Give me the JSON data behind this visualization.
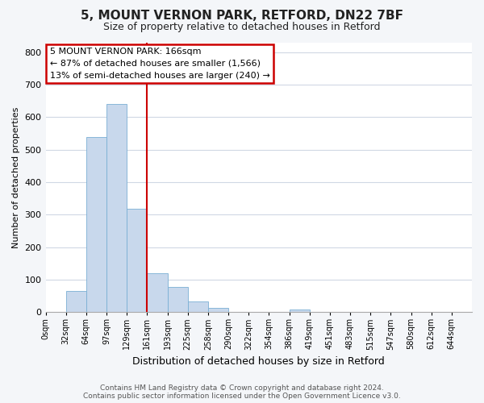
{
  "title": "5, MOUNT VERNON PARK, RETFORD, DN22 7BF",
  "subtitle": "Size of property relative to detached houses in Retford",
  "xlabel": "Distribution of detached houses by size in Retford",
  "ylabel": "Number of detached properties",
  "bar_color": "#c8d8ec",
  "bar_edge_color": "#7aafd4",
  "bin_labels": [
    "0sqm",
    "32sqm",
    "64sqm",
    "97sqm",
    "129sqm",
    "161sqm",
    "193sqm",
    "225sqm",
    "258sqm",
    "290sqm",
    "322sqm",
    "354sqm",
    "386sqm",
    "419sqm",
    "451sqm",
    "483sqm",
    "515sqm",
    "547sqm",
    "580sqm",
    "612sqm",
    "644sqm"
  ],
  "bar_heights": [
    0,
    65,
    538,
    640,
    318,
    120,
    77,
    33,
    12,
    0,
    0,
    0,
    8,
    0,
    0,
    0,
    0,
    0,
    0,
    0,
    0
  ],
  "red_line_bin": 5,
  "ylim": [
    0,
    830
  ],
  "yticks": [
    0,
    100,
    200,
    300,
    400,
    500,
    600,
    700,
    800
  ],
  "annotation_title": "5 MOUNT VERNON PARK: 166sqm",
  "annotation_line1": "← 87% of detached houses are smaller (1,566)",
  "annotation_line2": "13% of semi-detached houses are larger (240) →",
  "annotation_box_color": "#ffffff",
  "annotation_box_edge": "#cc0000",
  "footer_line1": "Contains HM Land Registry data © Crown copyright and database right 2024.",
  "footer_line2": "Contains public sector information licensed under the Open Government Licence v3.0.",
  "background_color": "#f4f6f9",
  "plot_background": "#ffffff",
  "grid_color": "#d0d8e4"
}
